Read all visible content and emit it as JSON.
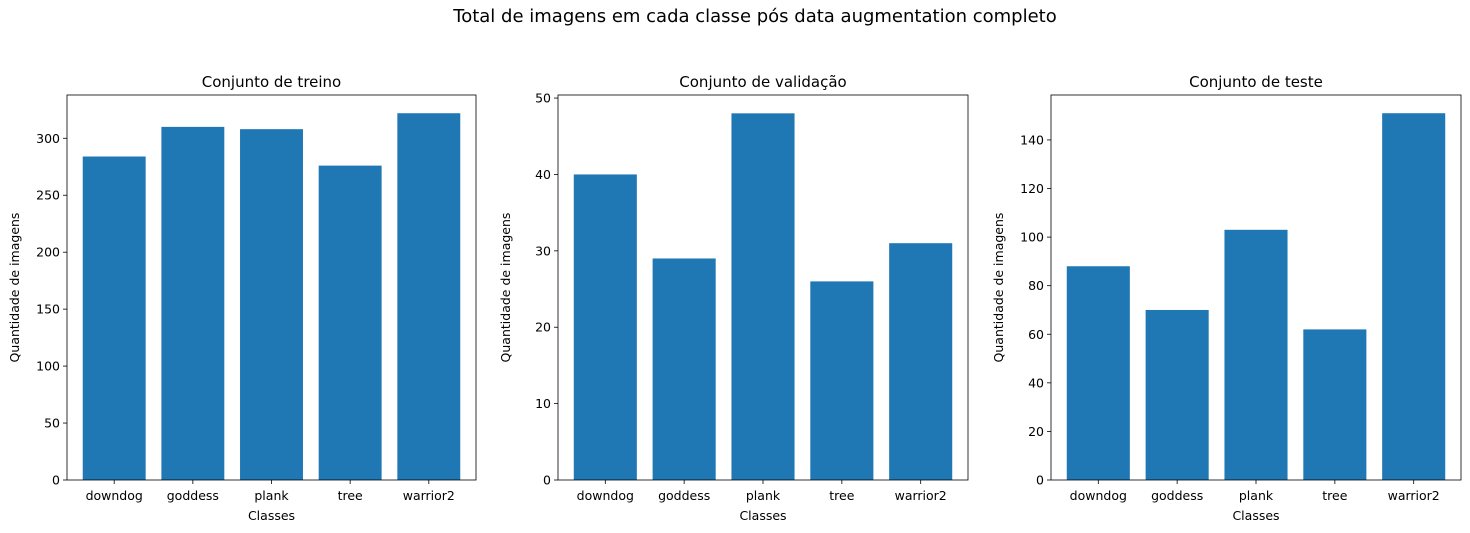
{
  "figure": {
    "suptitle": "Total de imagens em cada classe pós data augmentation completo",
    "bar_color": "#1f77b4"
  },
  "chart_data": [
    {
      "type": "bar",
      "title": "Conjunto de treino",
      "xlabel": "Classes",
      "ylabel": "Quantidade de imagens",
      "categories": [
        "downdog",
        "goddess",
        "plank",
        "tree",
        "warrior2"
      ],
      "values": [
        284,
        310,
        308,
        276,
        322
      ],
      "ylim": [
        0,
        338
      ],
      "yticks": [
        0,
        50,
        100,
        150,
        200,
        250,
        300
      ]
    },
    {
      "type": "bar",
      "title": "Conjunto de validação",
      "xlabel": "Classes",
      "ylabel": "Quantidade de imagens",
      "categories": [
        "downdog",
        "goddess",
        "plank",
        "tree",
        "warrior2"
      ],
      "values": [
        40,
        29,
        48,
        26,
        31
      ],
      "ylim": [
        0,
        50.4
      ],
      "yticks": [
        0,
        10,
        20,
        30,
        40,
        50
      ]
    },
    {
      "type": "bar",
      "title": "Conjunto de teste",
      "xlabel": "Classes",
      "ylabel": "Quantidade de imagens",
      "categories": [
        "downdog",
        "goddess",
        "plank",
        "tree",
        "warrior2"
      ],
      "values": [
        88,
        70,
        103,
        62,
        151
      ],
      "ylim": [
        0,
        158.5
      ],
      "yticks": [
        0,
        20,
        40,
        60,
        80,
        100,
        120,
        140
      ]
    }
  ]
}
